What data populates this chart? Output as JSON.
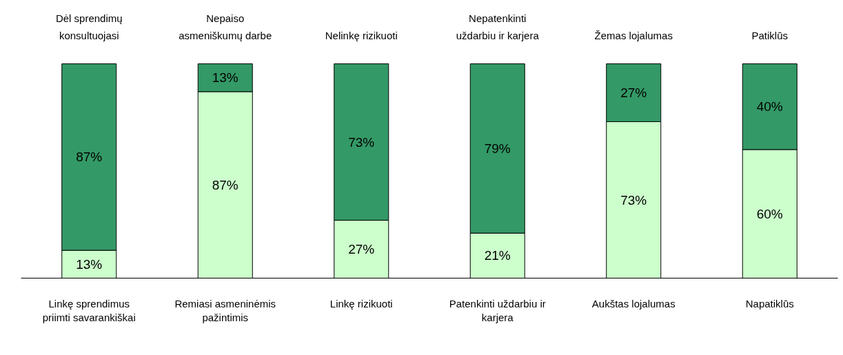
{
  "chart_data": {
    "type": "bar",
    "stacked": true,
    "categories": [
      "Linkę sprendimus\npriimti savarankiškai",
      "Remiasi asmeninėmis\npažintimis",
      "Linkę rizikuoti",
      "Patenkinti uždarbiu ir\nkarjera",
      "Aukštas lojalumas",
      "Napatiklūs"
    ],
    "series": [
      {
        "color": "#ccffcc",
        "values": [
          13,
          87,
          27,
          21,
          73,
          60
        ],
        "value_labels": [
          "13%",
          "87%",
          "27%",
          "21%",
          "73%",
          "60%"
        ]
      },
      {
        "color": "#339966",
        "values": [
          87,
          13,
          73,
          79,
          27,
          40
        ],
        "value_labels": [
          "87%",
          "13%",
          "73%",
          "79%",
          "27%",
          "40%"
        ]
      }
    ],
    "annotations": [
      "Dėl sprendimų\nkonsultuojasi",
      "Nepaiso\nasmeniškumų darbe",
      "Nelinkę rizikuoti",
      "Nepatenkinti\nuždarbiu ir karjera",
      "Žemas lojalumas",
      "Patiklūs"
    ],
    "grid": false
  }
}
